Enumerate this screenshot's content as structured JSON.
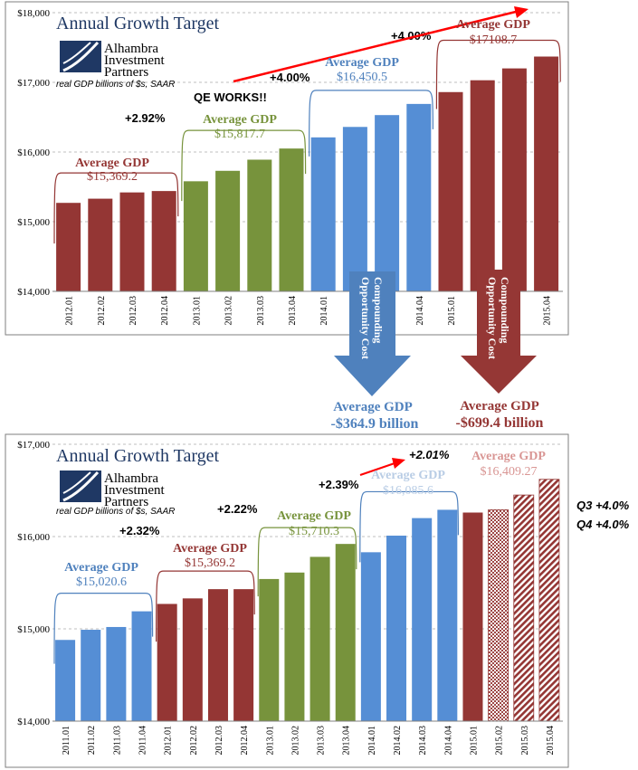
{
  "colors": {
    "red": "#943634",
    "green": "#77933C",
    "blue": "#4F81BD",
    "bar_blue": "#558ED5",
    "title_navy": "#1F3864",
    "annot_red": "#953735",
    "pale_blue": "#B9CDE5",
    "pale_red": "#D99694",
    "arrow_red": "#FF0000"
  },
  "logo": {
    "line1": "Alhambra",
    "line2": "Investment",
    "line3": "Partners",
    "icon": "alhambra-logo-icon"
  },
  "chart_data": [
    {
      "type": "bar",
      "title": "Annual Growth Target",
      "subtitle": "real GDP billions of $s, SAAR",
      "ylim": [
        14000,
        18000
      ],
      "yticks": [
        "$14,000",
        "$15,000",
        "$16,000",
        "$17,000",
        "$18,000"
      ],
      "categories": [
        "2012.01",
        "2012.02",
        "2012.03",
        "2012.04",
        "2013.01",
        "2013.02",
        "2013.03",
        "2013.04",
        "2014.01",
        "2014.02",
        "2014.03",
        "2014.04",
        "2015.01",
        "2015.02",
        "2015.03",
        "2015.04"
      ],
      "values": [
        15270,
        15330,
        15420,
        15440,
        15580,
        15730,
        15890,
        16050,
        16210,
        16360,
        16530,
        16690,
        16860,
        17030,
        17200,
        17370
      ],
      "bar_colors": [
        "red",
        "red",
        "red",
        "red",
        "green",
        "green",
        "green",
        "green",
        "blue",
        "blue",
        "blue",
        "blue",
        "red",
        "red",
        "red",
        "red"
      ],
      "groups": [
        {
          "line1": "Average GDP",
          "line2": "$15,369.2",
          "color": "red"
        },
        {
          "line1": "Average GDP",
          "line2": "$15,817.7",
          "color": "green"
        },
        {
          "line1": "Average GDP",
          "line2": "$16,450.5",
          "color": "blue"
        },
        {
          "line1": "Average GDP",
          "line2": "$17108.7",
          "color": "red"
        }
      ],
      "growth_labels": [
        "+2.92%",
        "+4.00%",
        "+4.00%"
      ],
      "annotation": "QE WORKS!!",
      "arrows": [
        {
          "label": "Compounding Opportunity Cost",
          "color": "blue"
        },
        {
          "label": "Compounding Opportunity Cost",
          "color": "red"
        }
      ],
      "cost_labels": [
        {
          "line1": "Average GDP",
          "line2": "-$364.9 billion",
          "color": "blue"
        },
        {
          "line1": "Average GDP",
          "line2": "-$699.4 billion",
          "color": "red"
        }
      ]
    },
    {
      "type": "bar",
      "title": "Annual Growth Target",
      "subtitle": "real GDP billions of $s, SAAR",
      "ylim": [
        14000,
        17000
      ],
      "yticks": [
        "$14,000",
        "$15,000",
        "$16,000",
        "$17,000"
      ],
      "categories": [
        "2011.01",
        "2011.02",
        "2011.03",
        "2011.04",
        "2012.01",
        "2012.02",
        "2012.03",
        "2012.04",
        "2013.01",
        "2013.02",
        "2013.03",
        "2013.04",
        "2014.01",
        "2014.02",
        "2014.03",
        "2014.04",
        "2015.01",
        "2015.02",
        "2015.03",
        "2015.04"
      ],
      "values": [
        14880,
        14990,
        15020,
        15190,
        15270,
        15330,
        15430,
        15430,
        15540,
        15610,
        15780,
        15920,
        15830,
        16010,
        16200,
        16290,
        16260,
        16290,
        16450,
        16620
      ],
      "bar_colors": [
        "blue",
        "blue",
        "blue",
        "blue",
        "red",
        "red",
        "red",
        "red",
        "green",
        "green",
        "green",
        "green",
        "blue",
        "blue",
        "blue",
        "blue",
        "red",
        "red-dotted",
        "red-hatched",
        "red-hatched"
      ],
      "groups": [
        {
          "line1": "Average GDP",
          "line2": "$15,020.6",
          "color": "blue"
        },
        {
          "line1": "Average GDP",
          "line2": "$15,369.2",
          "color": "red"
        },
        {
          "line1": "Average GDP",
          "line2": "$15,710.3",
          "color": "green"
        },
        {
          "line1": "Average GDP",
          "line2": "$16,085.6",
          "color": "pale_blue"
        },
        {
          "line1": "Average GDP",
          "line2": "$16,409.27",
          "color": "pale_red"
        }
      ],
      "growth_labels": [
        "+2.32%",
        "+2.22%",
        "+2.39%",
        "+2.01%"
      ],
      "side_notes": [
        "Q3 +4.0%",
        "Q4 +4.0%"
      ]
    }
  ]
}
